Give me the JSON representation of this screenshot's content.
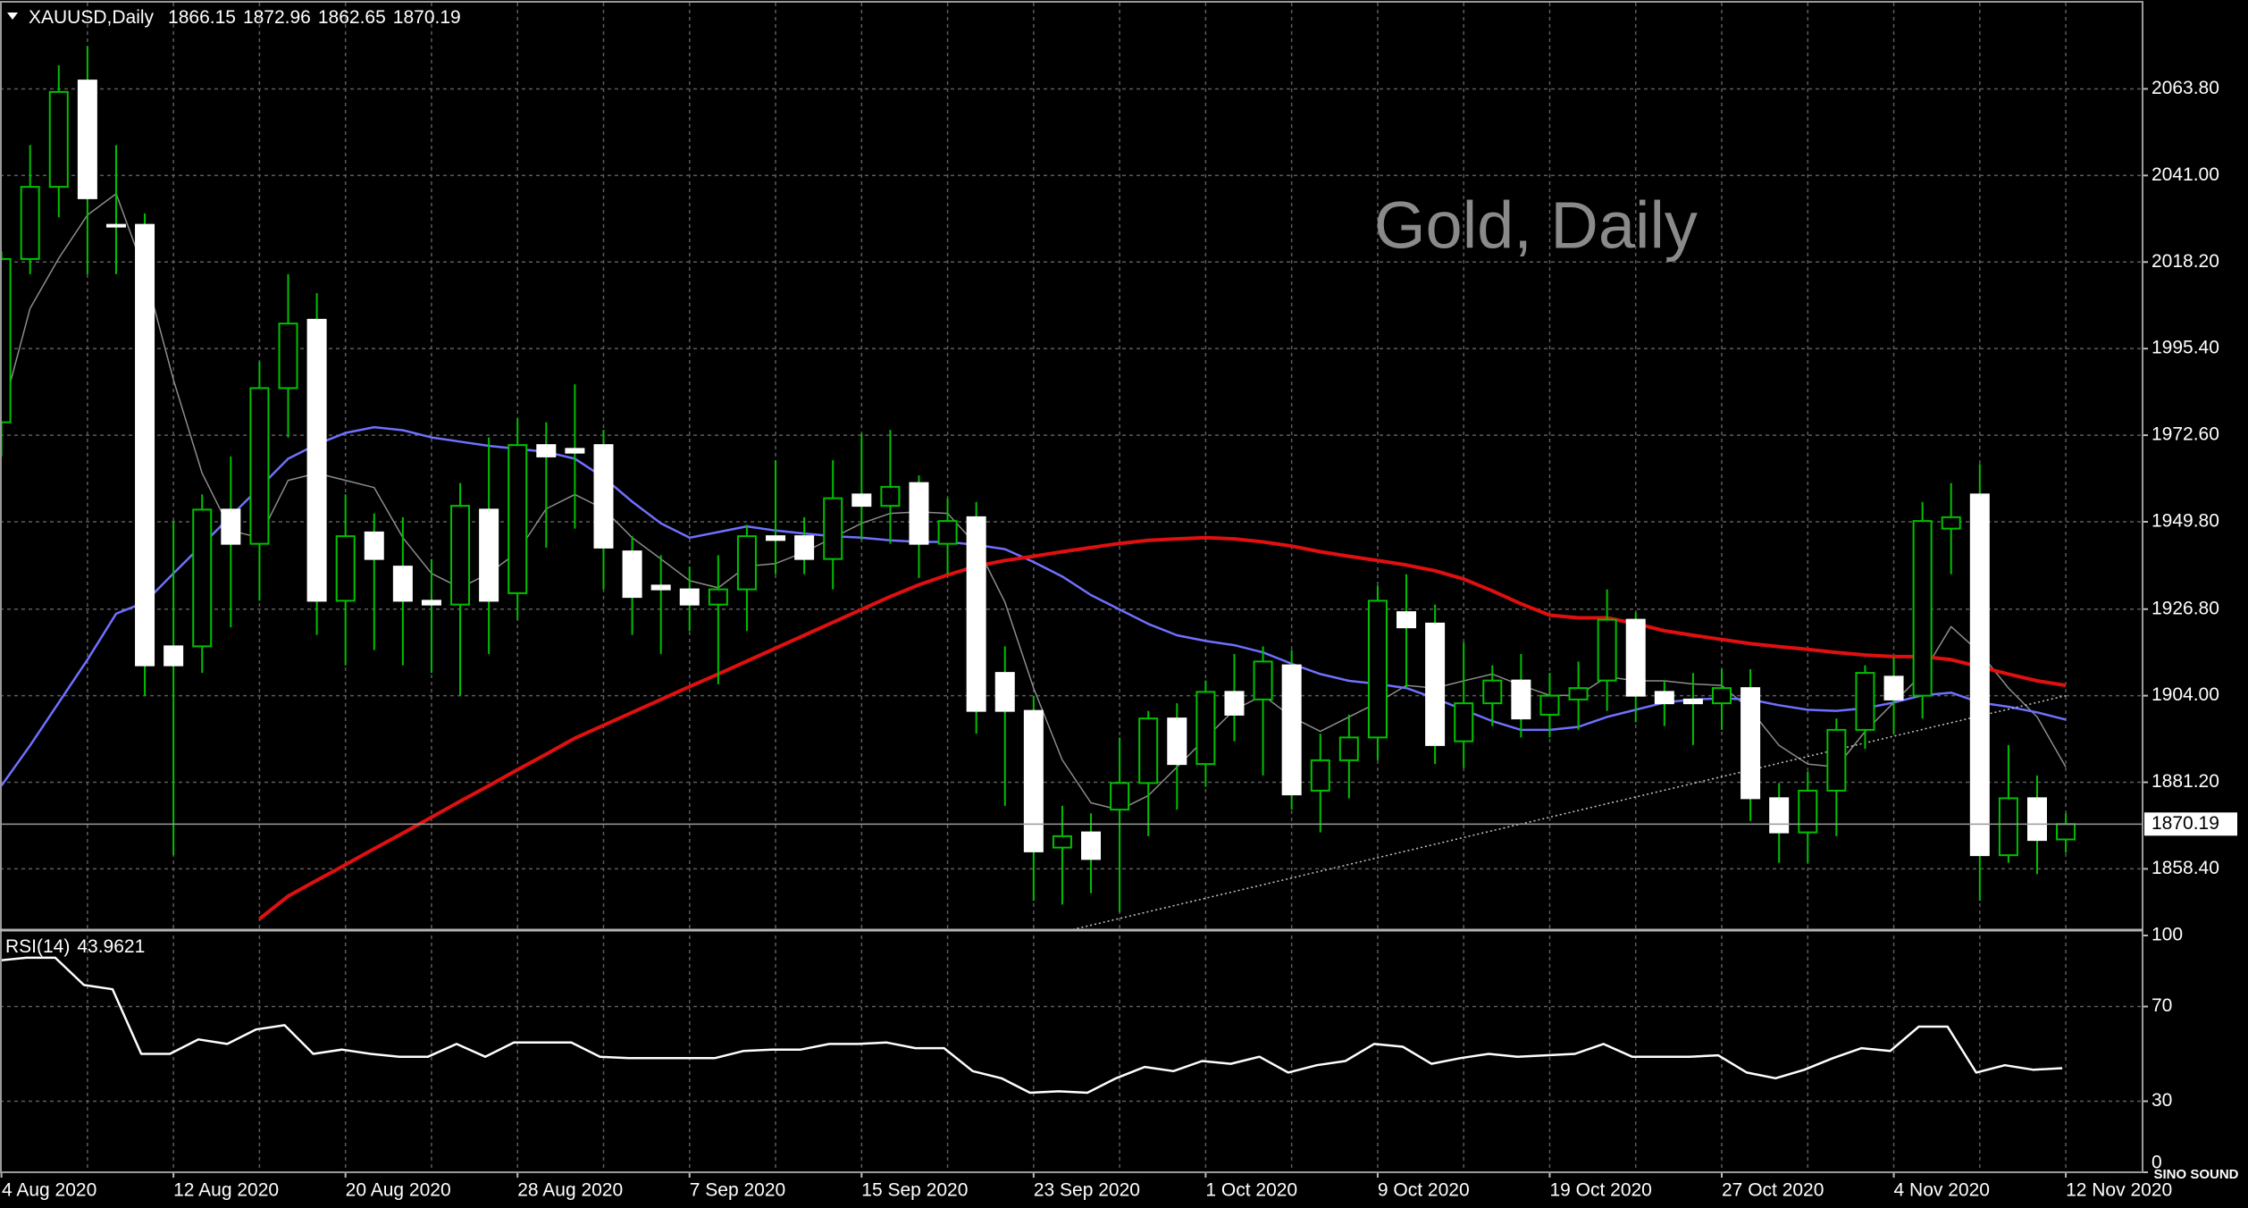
{
  "chart_data": {
    "type": "candlestick",
    "title": "XAUUSD,Daily",
    "watermark": "Gold, Daily",
    "logo": "SINO SOUND",
    "categories": [
      "4 Aug 2020",
      null,
      null,
      null,
      null,
      null,
      "12 Aug 2020",
      null,
      null,
      null,
      null,
      null,
      "20 Aug 2020",
      null,
      null,
      null,
      null,
      null,
      "28 Aug 2020",
      null,
      null,
      null,
      null,
      null,
      "7 Sep 2020",
      null,
      null,
      null,
      null,
      null,
      "15 Sep 2020",
      null,
      null,
      null,
      null,
      null,
      "23 Sep 2020",
      null,
      null,
      null,
      null,
      null,
      "1 Oct 2020",
      null,
      null,
      null,
      null,
      null,
      "9 Oct 2020",
      null,
      null,
      null,
      null,
      null,
      "19 Oct 2020",
      null,
      null,
      null,
      null,
      null,
      "27 Oct 2020",
      null,
      null,
      null,
      null,
      null,
      "4 Nov 2020",
      null,
      null,
      null,
      null,
      null,
      "12 Nov 2020"
    ],
    "open": [
      1976,
      2019,
      2038,
      2066,
      2028,
      2028,
      1917,
      1917,
      1953,
      1944,
      1985,
      2003,
      1929,
      1947,
      1938,
      1929,
      1928,
      1953,
      1931,
      1970,
      1969,
      1970,
      1942,
      1933,
      1932,
      1928,
      1932,
      1946,
      1946,
      1940,
      1957,
      1954,
      1960,
      1944,
      1951,
      1910,
      1900,
      1864,
      1868,
      1874,
      1881,
      1898,
      1886,
      1905,
      1903,
      1912,
      1879,
      1887,
      1893,
      1926,
      1923,
      1892,
      1902,
      1908,
      1899,
      1903,
      1908,
      1924,
      1905,
      1903,
      1902,
      1906,
      1877,
      1868,
      1879,
      1895,
      1909,
      1904,
      1948,
      1957,
      1862,
      1877,
      1866.15
    ],
    "high": [
      2021,
      2049,
      2070,
      2075,
      2049,
      2031,
      1950,
      1957,
      1967,
      1992,
      2015,
      2010,
      1957,
      1952,
      1951,
      1940,
      1960,
      1972,
      1977,
      1976,
      1986,
      1974,
      1946,
      1941,
      1938,
      1941,
      1949,
      1966,
      1951,
      1966,
      1973,
      1974,
      1962,
      1956,
      1955,
      1917,
      1904,
      1875,
      1873,
      1893,
      1900,
      1902,
      1908,
      1915,
      1917,
      1916,
      1894,
      1899,
      1933,
      1936,
      1928,
      1918,
      1912,
      1915,
      1910,
      1913,
      1932,
      1926,
      1908,
      1910,
      1911,
      1911,
      1881,
      1884,
      1898,
      1912,
      1914,
      1955,
      1960,
      1965,
      1891,
      1883,
      1872.96
    ],
    "low": [
      1967,
      2015,
      2030,
      2015,
      2015,
      1904,
      1862,
      1910,
      1922,
      1929,
      1972,
      1920,
      1912,
      1916,
      1912,
      1910,
      1904,
      1915,
      1924,
      1943,
      1948,
      1932,
      1920,
      1915,
      1921,
      1907,
      1921,
      1936,
      1936,
      1932,
      1945,
      1944,
      1935,
      1936,
      1894,
      1875,
      1850,
      1849,
      1852,
      1847,
      1867,
      1874,
      1880,
      1892,
      1883,
      1874,
      1868,
      1877,
      1887,
      1906,
      1886,
      1885,
      1896,
      1893,
      1893,
      1895,
      1900,
      1897,
      1896,
      1891,
      1895,
      1871,
      1860,
      1860,
      1867,
      1890,
      1894,
      1898,
      1936,
      1850,
      1860,
      1857,
      1862.65
    ],
    "close": [
      2019,
      2038,
      2063,
      2035,
      2028,
      1912,
      1912,
      1953,
      1944,
      1985,
      2002,
      1929,
      1946,
      1940,
      1929,
      1928,
      1954,
      1929,
      1970,
      1967,
      1968,
      1943,
      1930,
      1932,
      1928,
      1932,
      1946,
      1945,
      1940,
      1956,
      1954,
      1959,
      1944,
      1950,
      1900,
      1900,
      1863,
      1867,
      1861,
      1881,
      1898,
      1886,
      1905,
      1899,
      1913,
      1878,
      1887,
      1893,
      1929,
      1922,
      1891,
      1902,
      1908,
      1898,
      1904,
      1906,
      1924,
      1904,
      1902,
      1902,
      1906,
      1877,
      1868,
      1879,
      1895,
      1910,
      1903,
      1950,
      1951,
      1862,
      1877,
      1866,
      1870.19
    ],
    "up_color": "#000000",
    "down_color": "#ffffff",
    "wick_color": "#00c000",
    "overlays": [
      {
        "color": "#8c8c8c",
        "values": [
          1977.7,
          2006.0,
          2019.2,
          2030.6,
          2036.2,
          2015.5,
          1987.2,
          1962.6,
          1947.5,
          1945.6,
          1960.7,
          1962.6,
          1960.7,
          1958.8,
          1945.6,
          1936.2,
          1932.4,
          1936.2,
          1941.8,
          1953.2,
          1957.0,
          1953.2,
          1945.6,
          1940.0,
          1934.3,
          1932.4,
          1938.1,
          1938.8,
          1941.8,
          1945.6,
          1949.4,
          1952.0,
          1952.4,
          1952.0,
          1943.7,
          1928.6,
          1906.0,
          1887.1,
          1875.8,
          1873.9,
          1877.7,
          1885.2,
          1892.8,
          1900.3,
          1904.1,
          1898.4,
          1894.6,
          1898.4,
          1902.2,
          1906.7,
          1906.0,
          1907.9,
          1909.7,
          1906.7,
          1904.1,
          1904.1,
          1909.0,
          1907.9,
          1907.9,
          1907.1,
          1906.7,
          1900.3,
          1890.9,
          1886.0,
          1885.2,
          1894.6,
          1902.2,
          1909.7,
          1922.2,
          1915.4,
          1906.0,
          1898.4,
          1885.2
        ],
        "width": 1.5
      },
      {
        "color": "#7070ff",
        "values": [
          1880.3,
          1890.9,
          1902.2,
          1913.5,
          1925.6,
          1928.6,
          1936.2,
          1943.7,
          1951.3,
          1958.8,
          1966.4,
          1970.2,
          1973.2,
          1974.7,
          1973.9,
          1972.0,
          1970.9,
          1969.8,
          1969.0,
          1968.2,
          1966.4,
          1961.5,
          1955.1,
          1949.4,
          1945.6,
          1947.1,
          1948.6,
          1947.5,
          1946.7,
          1946.0,
          1945.6,
          1944.9,
          1944.5,
          1944.5,
          1943.7,
          1942.6,
          1939.2,
          1935.4,
          1930.5,
          1926.7,
          1922.9,
          1919.9,
          1918.4,
          1917.3,
          1915.4,
          1912.4,
          1909.7,
          1907.9,
          1907.1,
          1906.0,
          1903.3,
          1900.3,
          1897.3,
          1895.0,
          1895.0,
          1895.8,
          1898.4,
          1900.3,
          1902.2,
          1903.0,
          1903.3,
          1903.0,
          1901.5,
          1900.3,
          1900.0,
          1900.7,
          1902.2,
          1904.1,
          1904.8,
          1902.2,
          1901.1,
          1899.6,
          1897.7
        ],
        "width": 2.5
      },
      {
        "color": "#e01010",
        "values": [
          null,
          null,
          null,
          null,
          null,
          null,
          null,
          null,
          null,
          1845.2,
          1851.2,
          1855.4,
          1859.5,
          1863.7,
          1867.8,
          1872.0,
          1876.2,
          1880.3,
          1884.5,
          1888.6,
          1892.8,
          1896.2,
          1899.6,
          1903.0,
          1906.4,
          1909.7,
          1913.1,
          1916.5,
          1919.9,
          1923.3,
          1926.7,
          1930.1,
          1933.2,
          1935.8,
          1938.1,
          1939.6,
          1940.7,
          1941.9,
          1943.0,
          1944.1,
          1944.9,
          1945.3,
          1945.6,
          1945.3,
          1944.5,
          1943.4,
          1941.9,
          1940.7,
          1939.6,
          1938.4,
          1936.9,
          1934.7,
          1931.6,
          1928.2,
          1925.2,
          1924.5,
          1924.5,
          1923.0,
          1921.1,
          1919.9,
          1918.8,
          1917.7,
          1916.9,
          1916.2,
          1915.4,
          1914.7,
          1914.3,
          1914.3,
          1913.5,
          1911.6,
          1909.7,
          1907.9,
          1906.7
        ],
        "width": 4
      }
    ],
    "trendline": {
      "x": [
        36,
        72
      ],
      "values": [
        1840,
        1904
      ],
      "color": "#c8c8c8"
    },
    "price_line": 1870.19,
    "ylim": [
      1842.5,
      2086.5
    ],
    "yticks": [
      {
        "value": 2063.8,
        "label": "2063.80"
      },
      {
        "value": 2041.0,
        "label": "2041.00"
      },
      {
        "value": 2018.2,
        "label": "2018.20"
      },
      {
        "value": 1995.4,
        "label": "1995.40"
      },
      {
        "value": 1972.6,
        "label": "1972.60"
      },
      {
        "value": 1949.8,
        "label": "1949.80"
      },
      {
        "value": 1926.8,
        "label": "1926.80"
      },
      {
        "value": 1904.0,
        "label": "1904.00"
      },
      {
        "value": 1881.2,
        "label": "1881.20"
      },
      {
        "value": 1858.4,
        "label": "1858.40"
      }
    ],
    "grid": true,
    "rsi": {
      "name": "RSI(14)",
      "color": "#ffffff",
      "values": [
        89.4,
        90.6,
        90.6,
        79.1,
        77.3,
        50,
        50,
        56.1,
        54.2,
        60.3,
        62.1,
        50,
        51.8,
        50,
        48.8,
        48.8,
        54.2,
        48.8,
        54.8,
        54.8,
        54.8,
        48.8,
        48.2,
        48.2,
        48.2,
        48.2,
        51.2,
        51.8,
        51.8,
        54.2,
        54.2,
        54.8,
        52.4,
        52.4,
        42.7,
        39.7,
        33.6,
        34.2,
        33.6,
        39.7,
        44.5,
        42.7,
        47.0,
        45.8,
        48.8,
        42.1,
        45.2,
        47.0,
        54.2,
        53.0,
        45.8,
        48.2,
        50.0,
        48.8,
        49.4,
        50.0,
        54.2,
        48.8,
        48.8,
        48.8,
        49.4,
        42.1,
        39.7,
        43.3,
        48.2,
        52.4,
        51.2,
        61.5,
        61.5,
        42.1,
        45.2,
        43.3,
        43.9621
      ],
      "ylim": [
        0,
        100
      ],
      "yticks": [
        100,
        70,
        30,
        0
      ],
      "levels": [
        70,
        30
      ]
    }
  }
}
